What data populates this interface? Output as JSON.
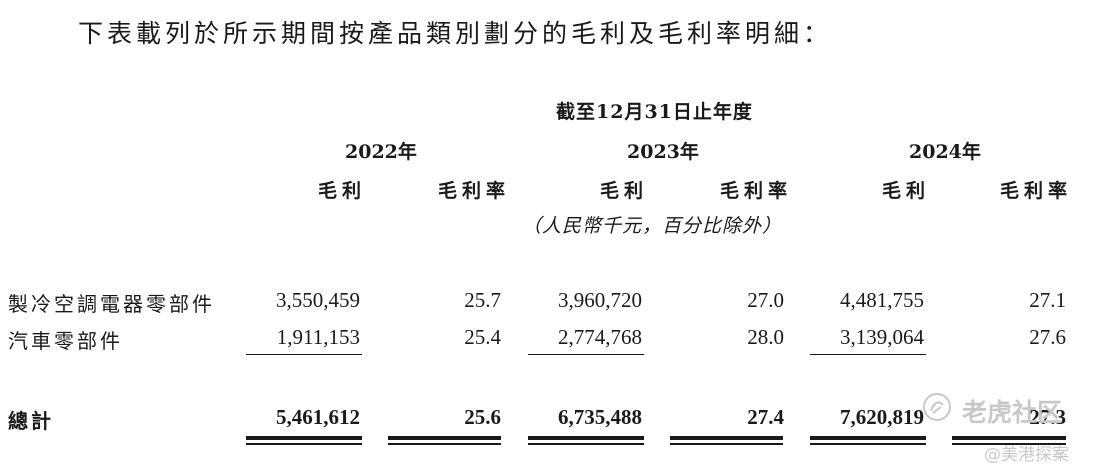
{
  "intro": "下表載列於所示期間按產品類別劃分的毛利及毛利率明細：",
  "period_header": "截至12月31日止年度",
  "years": [
    "2022年",
    "2023年",
    "2024年"
  ],
  "col_labels": {
    "profit": "毛利",
    "margin": "毛利率"
  },
  "unit_note": "（人民幣千元，百分比除外）",
  "rows": [
    {
      "label": "製冷空調電器零部件",
      "values": [
        "3,550,459",
        "25.7",
        "3,960,720",
        "27.0",
        "4,481,755",
        "27.1"
      ]
    },
    {
      "label": "汽車零部件",
      "values": [
        "1,911,153",
        "25.4",
        "2,774,768",
        "28.0",
        "3,139,064",
        "27.6"
      ]
    }
  ],
  "total": {
    "label": "總計",
    "values": [
      "5,461,612",
      "25.6",
      "6,735,488",
      "27.4",
      "7,620,819",
      "27.3"
    ]
  },
  "watermark": {
    "brand": "老虎社区",
    "user": "@美港探案"
  }
}
